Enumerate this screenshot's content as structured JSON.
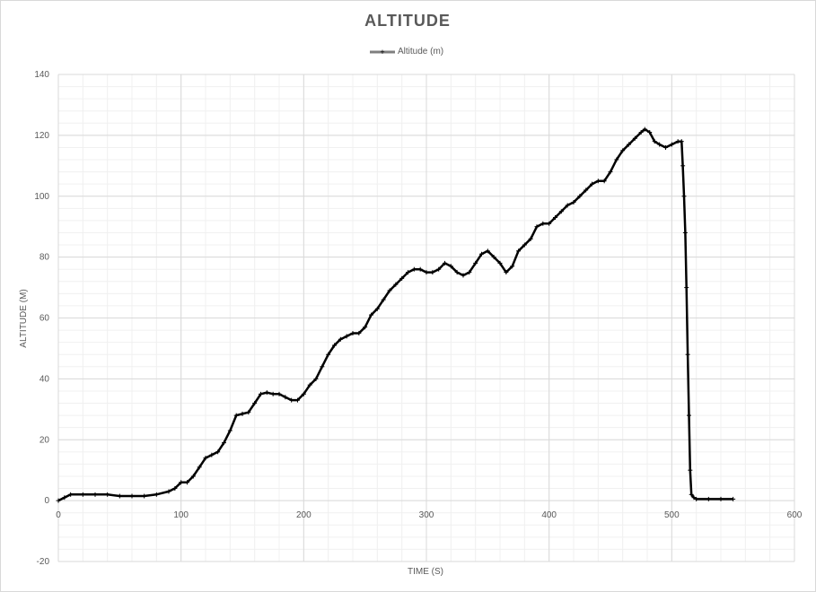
{
  "chart_data": {
    "type": "line",
    "title": "ALTITUDE",
    "xlabel": "TIME (S)",
    "ylabel": "ALTITUDE (M)",
    "xlim": [
      0,
      600
    ],
    "ylim": [
      -20,
      140
    ],
    "xticks": [
      0,
      100,
      200,
      300,
      400,
      500,
      600
    ],
    "yticks": [
      -20,
      0,
      20,
      40,
      60,
      80,
      100,
      120,
      140
    ],
    "grid": true,
    "legend": "top-center",
    "series": [
      {
        "name": "Altitude (m)",
        "color": "#000000",
        "marker": "plus",
        "x": [
          0,
          5,
          10,
          20,
          30,
          40,
          50,
          60,
          70,
          80,
          90,
          95,
          100,
          105,
          110,
          115,
          120,
          125,
          130,
          135,
          140,
          145,
          150,
          155,
          160,
          165,
          170,
          175,
          180,
          185,
          190,
          195,
          200,
          205,
          210,
          215,
          220,
          225,
          230,
          235,
          240,
          245,
          250,
          255,
          260,
          265,
          270,
          275,
          280,
          285,
          290,
          295,
          300,
          305,
          310,
          315,
          320,
          325,
          330,
          335,
          340,
          345,
          350,
          355,
          360,
          365,
          370,
          375,
          380,
          385,
          390,
          395,
          400,
          405,
          410,
          415,
          420,
          425,
          430,
          435,
          440,
          445,
          450,
          455,
          460,
          465,
          470,
          475,
          478,
          482,
          486,
          490,
          495,
          500,
          505,
          508,
          509,
          510,
          511,
          512,
          513,
          514,
          515,
          516,
          518,
          520,
          530,
          540,
          550
        ],
        "y": [
          0,
          1,
          2,
          2,
          2,
          2,
          1.5,
          1.5,
          1.5,
          2,
          3,
          4,
          6,
          6,
          8,
          11,
          14,
          15,
          16,
          19,
          23,
          28,
          28.5,
          29,
          32,
          35,
          35.5,
          35,
          35,
          34,
          33,
          33,
          35,
          38,
          40,
          44,
          48,
          51,
          53,
          54,
          55,
          55,
          57,
          61,
          63,
          66,
          69,
          71,
          73,
          75,
          76,
          76,
          75,
          75,
          76,
          78,
          77,
          75,
          74,
          75,
          78,
          81,
          82,
          80,
          78,
          75,
          77,
          82,
          84,
          86,
          90,
          91,
          91,
          93,
          95,
          97,
          98,
          100,
          102,
          104,
          105,
          105,
          108,
          112,
          115,
          117,
          119,
          121,
          122,
          121,
          118,
          117,
          116,
          117,
          118,
          118,
          110,
          100,
          88,
          70,
          48,
          28,
          10,
          2,
          1,
          0.5,
          0.5,
          0.5,
          0.5
        ]
      }
    ]
  }
}
